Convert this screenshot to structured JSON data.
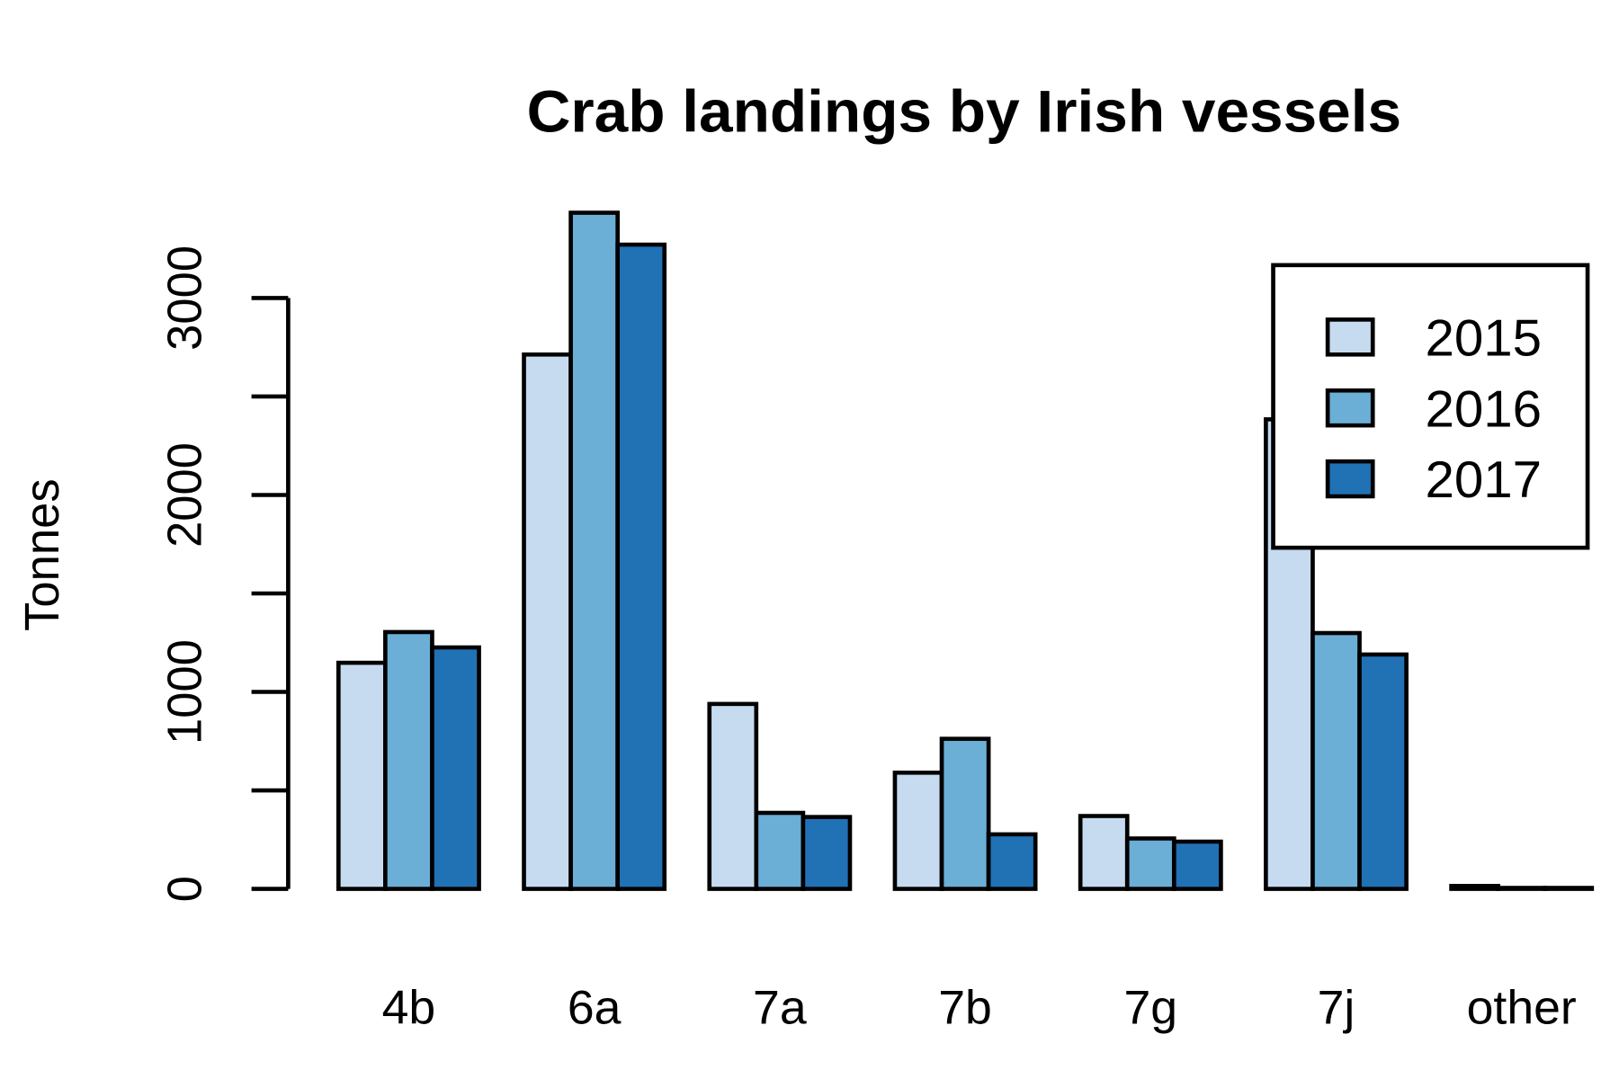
{
  "chart_data": {
    "type": "bar",
    "title": "Crab landings by Irish vessels",
    "y_label": "Tonnes",
    "categories": [
      "4b",
      "6a",
      "7a",
      "7b",
      "7g",
      "7j",
      "other"
    ],
    "series": [
      {
        "name": "2015",
        "color": "#c6dbef",
        "values": [
          1148,
          2713,
          939,
          590,
          370,
          2384,
          15
        ]
      },
      {
        "name": "2016",
        "color": "#6baed6",
        "values": [
          1304,
          3433,
          386,
          762,
          256,
          1299,
          5
        ]
      },
      {
        "name": "2017",
        "color": "#2171b5",
        "values": [
          1226,
          3271,
          365,
          277,
          240,
          1190,
          5
        ]
      }
    ],
    "ylim": [
      0,
      3000
    ],
    "yticks": [
      0,
      1000,
      2000,
      3000
    ],
    "y_minor_ticks": [
      500,
      1500,
      2500
    ],
    "grid": false,
    "legend": "top-right"
  }
}
